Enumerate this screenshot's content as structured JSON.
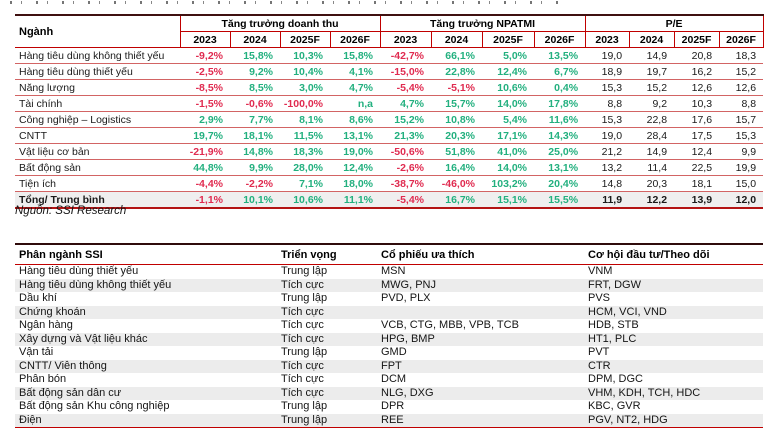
{
  "source_note": "Nguồn: SSI Research",
  "colors": {
    "border_red": "#c00000",
    "border_dark": "#3f1010",
    "positive_green": "#23b07f",
    "negative_red": "#e02b50",
    "zebra_gray": "#ececec",
    "total_row_gray": "#efefef"
  },
  "table1": {
    "sector_header": "Ngành",
    "groups": [
      "Tăng trưởng doanh thu",
      "Tăng trưởng NPATMI",
      "P/E"
    ],
    "years": [
      "2023",
      "2024",
      "2025F",
      "2026F"
    ],
    "rows": [
      {
        "name": "Hàng tiêu dùng không thiết yếu",
        "revenue": [
          "-9,2%",
          "15,8%",
          "10,3%",
          "15,8%"
        ],
        "npatmi": [
          "-42,7%",
          "66,1%",
          "5,0%",
          "13,5%"
        ],
        "pe": [
          "19,0",
          "14,9",
          "20,8",
          "18,3"
        ]
      },
      {
        "name": "Hàng tiêu dùng thiết yếu",
        "revenue": [
          "-2,5%",
          "9,2%",
          "10,4%",
          "4,1%"
        ],
        "npatmi": [
          "-15,0%",
          "22,8%",
          "12,4%",
          "6,7%"
        ],
        "pe": [
          "18,9",
          "19,7",
          "16,2",
          "15,2"
        ]
      },
      {
        "name": "Năng lượng",
        "revenue": [
          "-8,5%",
          "8,5%",
          "3,0%",
          "4,7%"
        ],
        "npatmi": [
          "-5,4%",
          "-5,1%",
          "10,6%",
          "0,4%"
        ],
        "pe": [
          "15,3",
          "15,2",
          "12,6",
          "12,6"
        ]
      },
      {
        "name": "Tài chính",
        "revenue": [
          "-1,5%",
          "-0,6%",
          "-100,0%",
          "n,a"
        ],
        "npatmi": [
          "4,7%",
          "15,7%",
          "14,0%",
          "17,8%"
        ],
        "pe": [
          "8,8",
          "9,2",
          "10,3",
          "8,8"
        ]
      },
      {
        "name": "Công nghiệp – Logistics",
        "revenue": [
          "2,9%",
          "7,7%",
          "8,1%",
          "8,6%"
        ],
        "npatmi": [
          "15,2%",
          "10,8%",
          "5,4%",
          "11,6%"
        ],
        "pe": [
          "15,3",
          "22,8",
          "17,6",
          "15,7"
        ]
      },
      {
        "name": "CNTT",
        "revenue": [
          "19,7%",
          "18,1%",
          "11,5%",
          "13,1%"
        ],
        "npatmi": [
          "21,3%",
          "20,3%",
          "17,1%",
          "14,3%"
        ],
        "pe": [
          "19,0",
          "28,4",
          "17,5",
          "15,3"
        ]
      },
      {
        "name": "Vật liệu cơ bản",
        "revenue": [
          "-21,9%",
          "14,8%",
          "18,3%",
          "19,0%"
        ],
        "npatmi": [
          "-50,6%",
          "51,8%",
          "41,0%",
          "25,0%"
        ],
        "pe": [
          "21,2",
          "14,9",
          "12,4",
          "9,9"
        ]
      },
      {
        "name": "Bất động sản",
        "revenue": [
          "44,8%",
          "9,9%",
          "28,0%",
          "12,4%"
        ],
        "npatmi": [
          "-2,6%",
          "16,4%",
          "14,0%",
          "13,1%"
        ],
        "pe": [
          "13,2",
          "11,4",
          "22,5",
          "19,9"
        ]
      },
      {
        "name": "Tiện ích",
        "revenue": [
          "-4,4%",
          "-2,2%",
          "7,1%",
          "18,0%"
        ],
        "npatmi": [
          "-38,7%",
          "-46,0%",
          "103,2%",
          "20,4%"
        ],
        "pe": [
          "14,8",
          "20,3",
          "18,1",
          "15,0"
        ]
      },
      {
        "name": "Tổng/ Trung bình",
        "is_total": true,
        "revenue": [
          "-1,1%",
          "10,1%",
          "10,6%",
          "11,1%"
        ],
        "npatmi": [
          "-5,4%",
          "16,7%",
          "15,1%",
          "15,5%"
        ],
        "pe": [
          "11,9",
          "12,2",
          "13,9",
          "12,0"
        ]
      }
    ]
  },
  "table2": {
    "headers": [
      "Phân ngành SSI",
      "Triển vọng",
      "Cổ phiếu ưa thích",
      "Cơ hội đầu tư/Theo dõi"
    ],
    "rows": [
      [
        "Hàng tiêu dùng thiết yếu",
        "Trung lập",
        "MSN",
        "VNM"
      ],
      [
        "Hàng tiêu dùng không thiết yếu",
        "Tích cực",
        "MWG, PNJ",
        "FRT, DGW"
      ],
      [
        "Dầu khí",
        "Trung lập",
        "PVD, PLX",
        "PVS"
      ],
      [
        "Chứng khoán",
        "Tích cực",
        "",
        "HCM, VCI, VND"
      ],
      [
        "Ngân hàng",
        "Tích cực",
        "VCB, CTG, MBB, VPB, TCB",
        "HDB, STB"
      ],
      [
        "Xây dựng và Vật liệu khác",
        "Tích cực",
        "HPG, BMP",
        "HT1, PLC"
      ],
      [
        "Vận tải",
        "Trung lập",
        "GMD",
        "PVT"
      ],
      [
        "CNTT/ Viễn thông",
        "Tích cực",
        "FPT",
        "CTR"
      ],
      [
        "Phân bón",
        "Tích cực",
        "DCM",
        "DPM, DGC"
      ],
      [
        "Bất động sản dân cư",
        "Tích cực",
        "NLG, DXG",
        "VHM, KDH, TCH, HDC"
      ],
      [
        "Bất động sản Khu công nghiệp",
        "Trung lập",
        "DPR",
        "KBC, GVR"
      ],
      [
        "Điện",
        "Trung lập",
        "REE",
        "PGV, NT2, HDG"
      ]
    ]
  }
}
